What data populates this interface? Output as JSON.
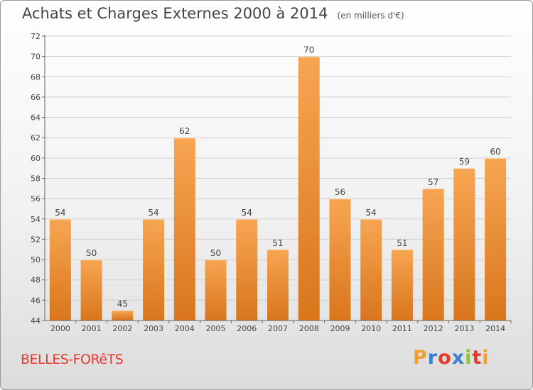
{
  "header": {
    "title": "Achats et Charges Externes 2000 à 2014",
    "subtitle": "(en milliers d'€)"
  },
  "footer": {
    "place_name": "BELLES-FORêTS",
    "logo_text": "Proxiti",
    "logo_colors": [
      "#f0a030",
      "#3a7fd0",
      "#e8392a",
      "#3a7fd0",
      "#8ac43a",
      "#e8392a",
      "#f0a030"
    ]
  },
  "colors": {
    "bar_light": "#f7a552",
    "bar_dark": "#d9761c",
    "grid": "#cfcfcf",
    "axis_text": "#444444"
  },
  "chart_data": {
    "type": "bar",
    "title": "Achats et Charges Externes 2000 à 2014",
    "subtitle": "(en milliers d'€)",
    "xlabel": "",
    "ylabel": "",
    "categories": [
      "2000",
      "2001",
      "2002",
      "2003",
      "2004",
      "2005",
      "2006",
      "2007",
      "2008",
      "2009",
      "2010",
      "2011",
      "2012",
      "2013",
      "2014"
    ],
    "values": [
      54,
      50,
      45,
      54,
      62,
      50,
      54,
      51,
      70,
      56,
      54,
      51,
      57,
      59,
      60
    ],
    "ylim": [
      44,
      72
    ],
    "yticks": [
      44,
      46,
      48,
      50,
      52,
      54,
      56,
      58,
      60,
      62,
      64,
      66,
      68,
      70,
      72
    ],
    "grid": true,
    "legend": "none"
  }
}
